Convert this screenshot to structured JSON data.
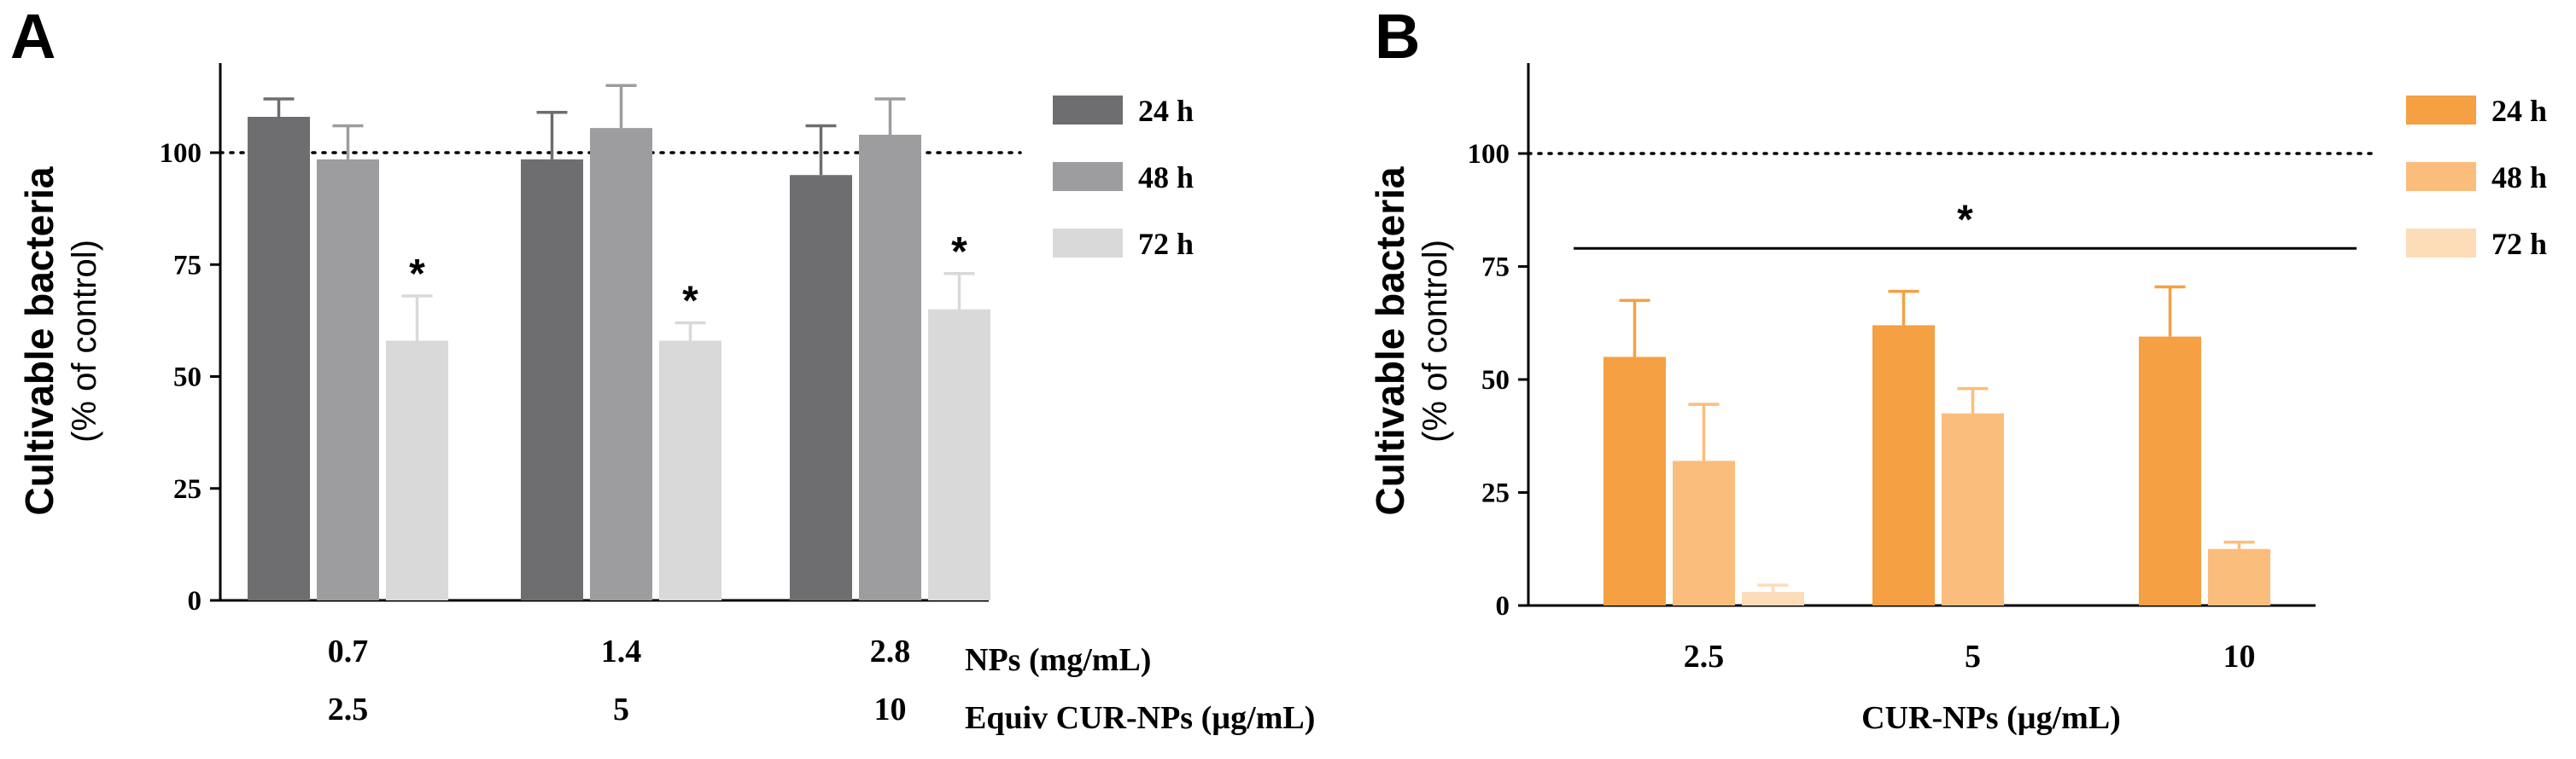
{
  "chart_data": [
    {
      "panel": "A",
      "type": "bar",
      "ylabel": "Cultivable bacteria",
      "ylabel_sub": "(% of control)",
      "ylim": [
        0,
        120
      ],
      "yticks": [
        "0",
        "25",
        "50",
        "75",
        "100"
      ],
      "reference_line": 100,
      "categories": [
        "0.7",
        "1.4",
        "2.8"
      ],
      "categories_row2": [
        "2.5",
        "5",
        "10"
      ],
      "xlabel_row1": "NPs (mg/mL)",
      "xlabel_row2": "Equiv CUR-NPs (µg/mL)",
      "series": [
        {
          "name": "24 h",
          "color": "#6e6e70",
          "values": [
            108,
            98.5,
            95
          ],
          "errors": [
            4,
            10.5,
            11
          ]
        },
        {
          "name": "48 h",
          "color": "#9d9da0",
          "values": [
            98.5,
            105.5,
            104
          ],
          "errors": [
            7.5,
            9.5,
            8
          ]
        },
        {
          "name": "72 h",
          "color": "#d9d9d9",
          "values": [
            58,
            58,
            65
          ],
          "errors": [
            10,
            4,
            8
          ]
        }
      ],
      "significance": [
        {
          "category": 0,
          "series": 2,
          "label": "*"
        },
        {
          "category": 1,
          "series": 2,
          "label": "*"
        },
        {
          "category": 2,
          "series": 2,
          "label": "*"
        }
      ],
      "legend_position": "right"
    },
    {
      "panel": "B",
      "type": "bar",
      "ylabel": "Cultivable bacteria",
      "ylabel_sub": "(% of control)",
      "ylim": [
        0,
        120
      ],
      "yticks": [
        "0",
        "25",
        "50",
        "75",
        "100"
      ],
      "reference_line": 100,
      "categories": [
        "2.5",
        "5",
        "10"
      ],
      "xlabel": "CUR-NPs (µg/mL)",
      "series": [
        {
          "name": "24 h",
          "color": "#f5a043",
          "values": [
            55,
            62,
            59.5
          ],
          "errors": [
            12.5,
            7.5,
            11
          ]
        },
        {
          "name": "48 h",
          "color": "#fbbd7c",
          "values": [
            32,
            42.5,
            12.5
          ],
          "errors": [
            12.5,
            5.5,
            1.5
          ]
        },
        {
          "name": "72 h",
          "color": "#fddcb8",
          "values": [
            3,
            0,
            0
          ],
          "errors": [
            1.5,
            0,
            0
          ]
        }
      ],
      "significance_bar": {
        "from_category": 0,
        "to_category": 2,
        "y": 79,
        "label": "*"
      },
      "legend_position": "right"
    }
  ]
}
